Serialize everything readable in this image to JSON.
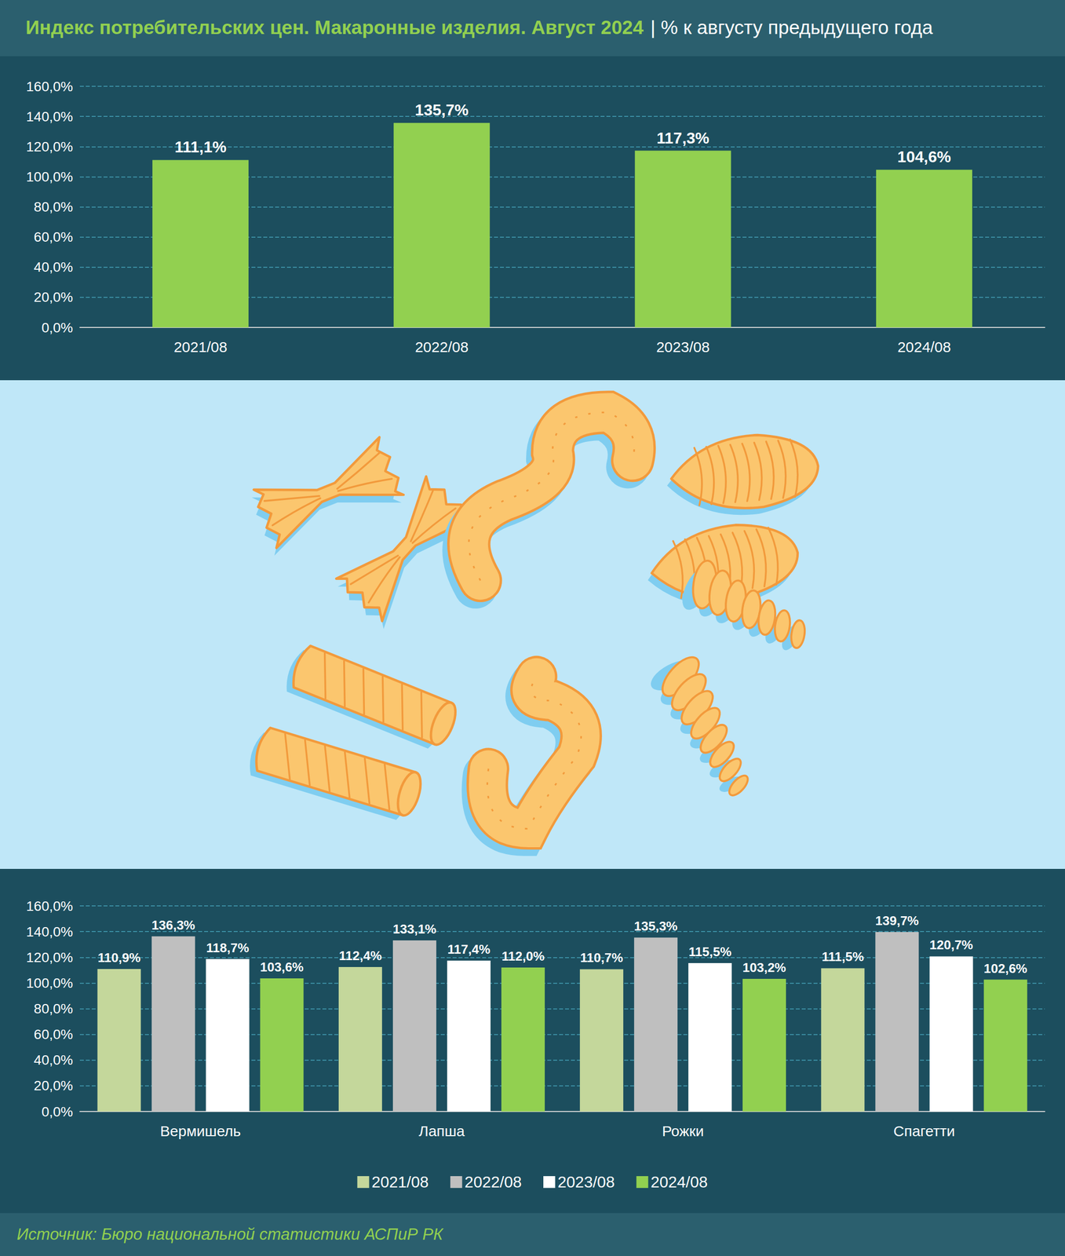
{
  "chart_data": [
    {
      "type": "bar",
      "title": "Индекс потребительских цен. Макаронные изделия. Август 2024",
      "subtitle": "| % к августу предыдущего года",
      "categories": [
        "2021/08",
        "2022/08",
        "2023/08",
        "2024/08"
      ],
      "values": [
        111.1,
        135.7,
        117.3,
        104.6
      ],
      "value_labels": [
        "111,1%",
        "135,7%",
        "117,3%",
        "104,6%"
      ],
      "color": "#92d050",
      "ylim": [
        0,
        160
      ],
      "yticks": [
        {
          "value": 0,
          "label": "0,0%"
        },
        {
          "value": 20,
          "label": "20,0%"
        },
        {
          "value": 40,
          "label": "40,0%"
        },
        {
          "value": 60,
          "label": "60,0%"
        },
        {
          "value": 80,
          "label": "80,0%"
        },
        {
          "value": 100,
          "label": "100,0%"
        },
        {
          "value": 120,
          "label": "120,0%"
        },
        {
          "value": 140,
          "label": "140,0%"
        },
        {
          "value": 160,
          "label": "160,0%"
        }
      ],
      "grid": true,
      "data_labels": true
    },
    {
      "type": "bar",
      "categories": [
        "Вермишель",
        "Лапша",
        "Рожки",
        "Спагетти"
      ],
      "series": [
        {
          "name": "2021/08",
          "color": "#c4d79b",
          "values": [
            110.9,
            112.4,
            110.7,
            111.5
          ],
          "value_labels": [
            "110,9%",
            "112,4%",
            "110,7%",
            "111,5%"
          ]
        },
        {
          "name": "2022/08",
          "color": "#bfbfbf",
          "values": [
            136.3,
            133.1,
            135.3,
            139.7
          ],
          "value_labels": [
            "136,3%",
            "133,1%",
            "135,3%",
            "139,7%"
          ]
        },
        {
          "name": "2023/08",
          "color": "#ffffff",
          "values": [
            118.7,
            117.4,
            115.5,
            120.7
          ],
          "value_labels": [
            "118,7%",
            "117,4%",
            "115,5%",
            "120,7%"
          ]
        },
        {
          "name": "2024/08",
          "color": "#92d050",
          "values": [
            103.6,
            112.0,
            103.2,
            102.6
          ],
          "value_labels": [
            "103,6%",
            "112,0%",
            "103,2%",
            "102,6%"
          ]
        }
      ],
      "ylim": [
        0,
        160
      ],
      "yticks": [
        {
          "value": 0,
          "label": "0,0%"
        },
        {
          "value": 20,
          "label": "20,0%"
        },
        {
          "value": 40,
          "label": "40,0%"
        },
        {
          "value": 60,
          "label": "60,0%"
        },
        {
          "value": 80,
          "label": "80,0%"
        },
        {
          "value": 100,
          "label": "100,0%"
        },
        {
          "value": 120,
          "label": "120,0%"
        },
        {
          "value": 140,
          "label": "140,0%"
        },
        {
          "value": 160,
          "label": "160,0%"
        }
      ],
      "grid": true,
      "data_labels": true,
      "legend": "bottom"
    }
  ],
  "source": "Источник: Бюро национальной статистики АСПиР РК"
}
